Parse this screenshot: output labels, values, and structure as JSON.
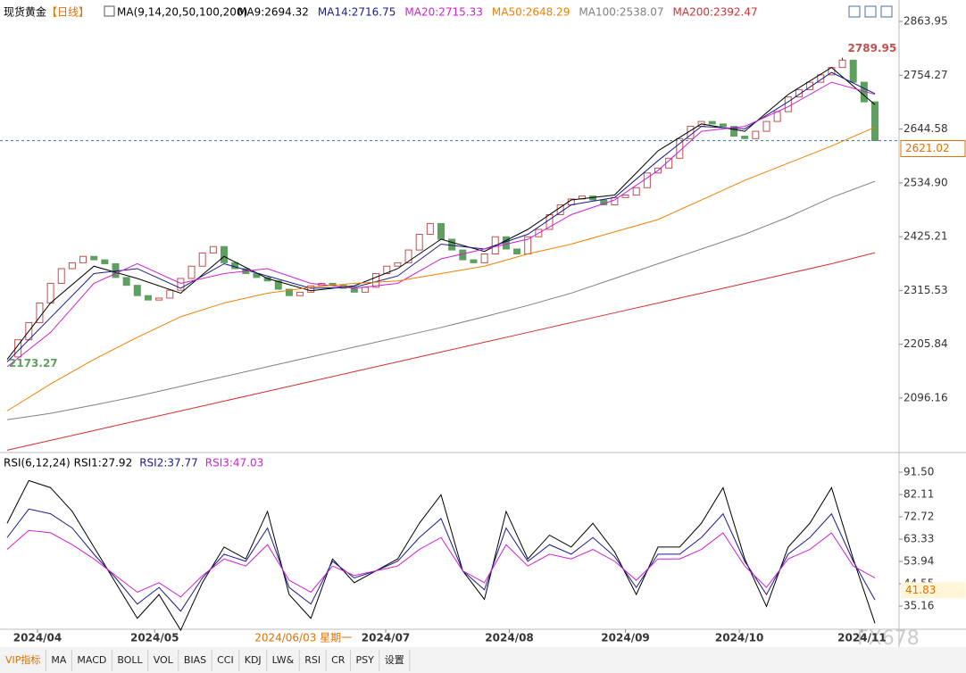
{
  "header": {
    "title": "现货黄金",
    "period": "【日线】",
    "ma_label": "MA(9,14,20,50,100,200)"
  },
  "chart_data": [
    {
      "type": "candlestick",
      "closes": [
        2180,
        2215,
        2250,
        2290,
        2330,
        2360,
        2372,
        2385,
        2378,
        2370,
        2342,
        2326,
        2305,
        2296,
        2300,
        2316,
        2340,
        2365,
        2392,
        2405,
        2372,
        2360,
        2350,
        2342,
        2335,
        2318,
        2305,
        2312,
        2325,
        2330,
        2326,
        2320,
        2312,
        2322,
        2350,
        2365,
        2372,
        2398,
        2430,
        2452,
        2420,
        2398,
        2378,
        2372,
        2390,
        2425,
        2400,
        2390,
        2425,
        2440,
        2470,
        2490,
        2502,
        2508,
        2500,
        2490,
        2505,
        2510,
        2525,
        2555,
        2565,
        2585,
        2625,
        2650,
        2660,
        2655,
        2650,
        2630,
        2625,
        2640,
        2660,
        2680,
        2710,
        2725,
        2740,
        2755,
        2770,
        2785,
        2740,
        2700,
        2621.02
      ],
      "up_color": "#c0504d",
      "down_color": "#5f9f5f",
      "ylim": [
        1988.8,
        2907.6
      ],
      "yticks": [
        {
          "value": 2863.95,
          "label": "2863.95"
        },
        {
          "value": 2754.27,
          "label": "2754.27"
        },
        {
          "value": 2644.58,
          "label": "2644.58"
        },
        {
          "value": 2534.9,
          "label": "2534.90"
        },
        {
          "value": 2425.21,
          "label": "2425.21"
        },
        {
          "value": 2315.53,
          "label": "2315.53"
        },
        {
          "value": 2205.84,
          "label": "2205.84"
        },
        {
          "value": 2096.16,
          "label": "2096.16"
        }
      ],
      "high": 2789.95,
      "low": 2173.27,
      "current": 2621.02,
      "ma_series": [
        {
          "name": "MA9:2694.32",
          "color": "#000000",
          "values": [
            2175,
            2290,
            2365,
            2340,
            2310,
            2385,
            2340,
            2315,
            2325,
            2360,
            2420,
            2395,
            2440,
            2500,
            2510,
            2600,
            2655,
            2640,
            2715,
            2770,
            2694.32
          ]
        },
        {
          "name": "MA14:2716.75",
          "color": "#1a1a8c",
          "values": [
            2170,
            2260,
            2350,
            2360,
            2320,
            2370,
            2345,
            2320,
            2322,
            2345,
            2410,
            2400,
            2430,
            2490,
            2505,
            2580,
            2650,
            2645,
            2700,
            2760,
            2716.75
          ]
        },
        {
          "name": "MA20:2715.33",
          "color": "#d020d0",
          "values": [
            2160,
            2230,
            2330,
            2370,
            2330,
            2350,
            2360,
            2330,
            2320,
            2330,
            2380,
            2400,
            2420,
            2470,
            2500,
            2560,
            2640,
            2650,
            2690,
            2740,
            2715.33
          ]
        },
        {
          "name": "MA50:2648.29",
          "color": "#f08000",
          "values": [
            2070,
            2125,
            2175,
            2220,
            2262,
            2290,
            2310,
            2322,
            2330,
            2335,
            2350,
            2365,
            2390,
            2410,
            2435,
            2460,
            2500,
            2540,
            2575,
            2610,
            2648.29
          ]
        },
        {
          "name": "MA100:2538.07",
          "color": "#808080",
          "values": [
            2052,
            2065,
            2082,
            2100,
            2120,
            2140,
            2160,
            2180,
            2200,
            2220,
            2240,
            2262,
            2285,
            2310,
            2340,
            2370,
            2400,
            2430,
            2465,
            2505,
            2538.07
          ]
        },
        {
          "name": "MA200:2392.47",
          "color": "#d03030",
          "values": [
            1990,
            2010,
            2030,
            2050,
            2070,
            2090,
            2110,
            2130,
            2150,
            2170,
            2190,
            2210,
            2230,
            2250,
            2270,
            2290,
            2310,
            2330,
            2350,
            2370,
            2392.47
          ]
        }
      ],
      "xticks": [
        {
          "value": 2.8,
          "label": "2024/04"
        },
        {
          "value": 13.6,
          "label": "2024/05"
        },
        {
          "value": 34.9,
          "label": "2024/07"
        },
        {
          "value": 46.3,
          "label": "2024/08"
        },
        {
          "value": 57,
          "label": "2024/09"
        },
        {
          "value": 67.5,
          "label": "2024/10"
        },
        {
          "value": 78.8,
          "label": "2024/11"
        }
      ],
      "cursor_tick": {
        "value": 27.3,
        "label": "2024/06/03 星期一"
      }
    },
    {
      "type": "line",
      "title": "RSI(6,12,24)",
      "series": [
        {
          "name": "RSI1:27.92",
          "color": "#000000",
          "values": [
            70,
            88,
            85,
            75,
            60,
            45,
            30,
            40,
            25,
            45,
            60,
            55,
            75,
            40,
            30,
            55,
            45,
            50,
            55,
            70,
            82,
            50,
            38,
            75,
            55,
            65,
            60,
            70,
            58,
            40,
            60,
            60,
            70,
            85,
            55,
            35,
            60,
            70,
            85,
            55,
            27.92
          ]
        },
        {
          "name": "RSI2:37.77",
          "color": "#1a1a8c",
          "values": [
            64,
            76,
            74,
            68,
            57,
            47,
            36,
            43,
            33,
            47,
            57,
            54,
            68,
            43,
            36,
            54,
            47,
            50,
            54,
            64,
            72,
            50,
            42,
            68,
            54,
            61,
            57,
            64,
            56,
            43,
            57,
            57,
            64,
            74,
            54,
            40,
            57,
            64,
            74,
            54,
            37.77
          ]
        },
        {
          "name": "RSI3:47.03",
          "color": "#d020d0",
          "values": [
            59,
            67,
            66,
            61,
            55,
            48,
            41,
            45,
            39,
            48,
            55,
            52,
            61,
            46,
            41,
            52,
            48,
            50,
            52,
            59,
            64,
            50,
            45,
            61,
            52,
            57,
            55,
            59,
            54,
            46,
            55,
            55,
            59,
            66,
            52,
            43,
            55,
            59,
            66,
            52,
            47.03
          ]
        }
      ],
      "ylim": [
        25.4,
        97.9
      ],
      "yticks": [
        {
          "value": 91.5,
          "label": "91.50"
        },
        82.11,
        72.72,
        63.33,
        53.94,
        44.55,
        35.16
      ],
      "marker": 41.83
    }
  ],
  "toolbar": [
    "VIP指标",
    "MA",
    "MACD",
    "BOLL",
    "VOL",
    "BIAS",
    "CCI",
    "KDJ",
    "LW&",
    "RSI",
    "CR",
    "PSY",
    "设置"
  ],
  "watermark": "FX678"
}
